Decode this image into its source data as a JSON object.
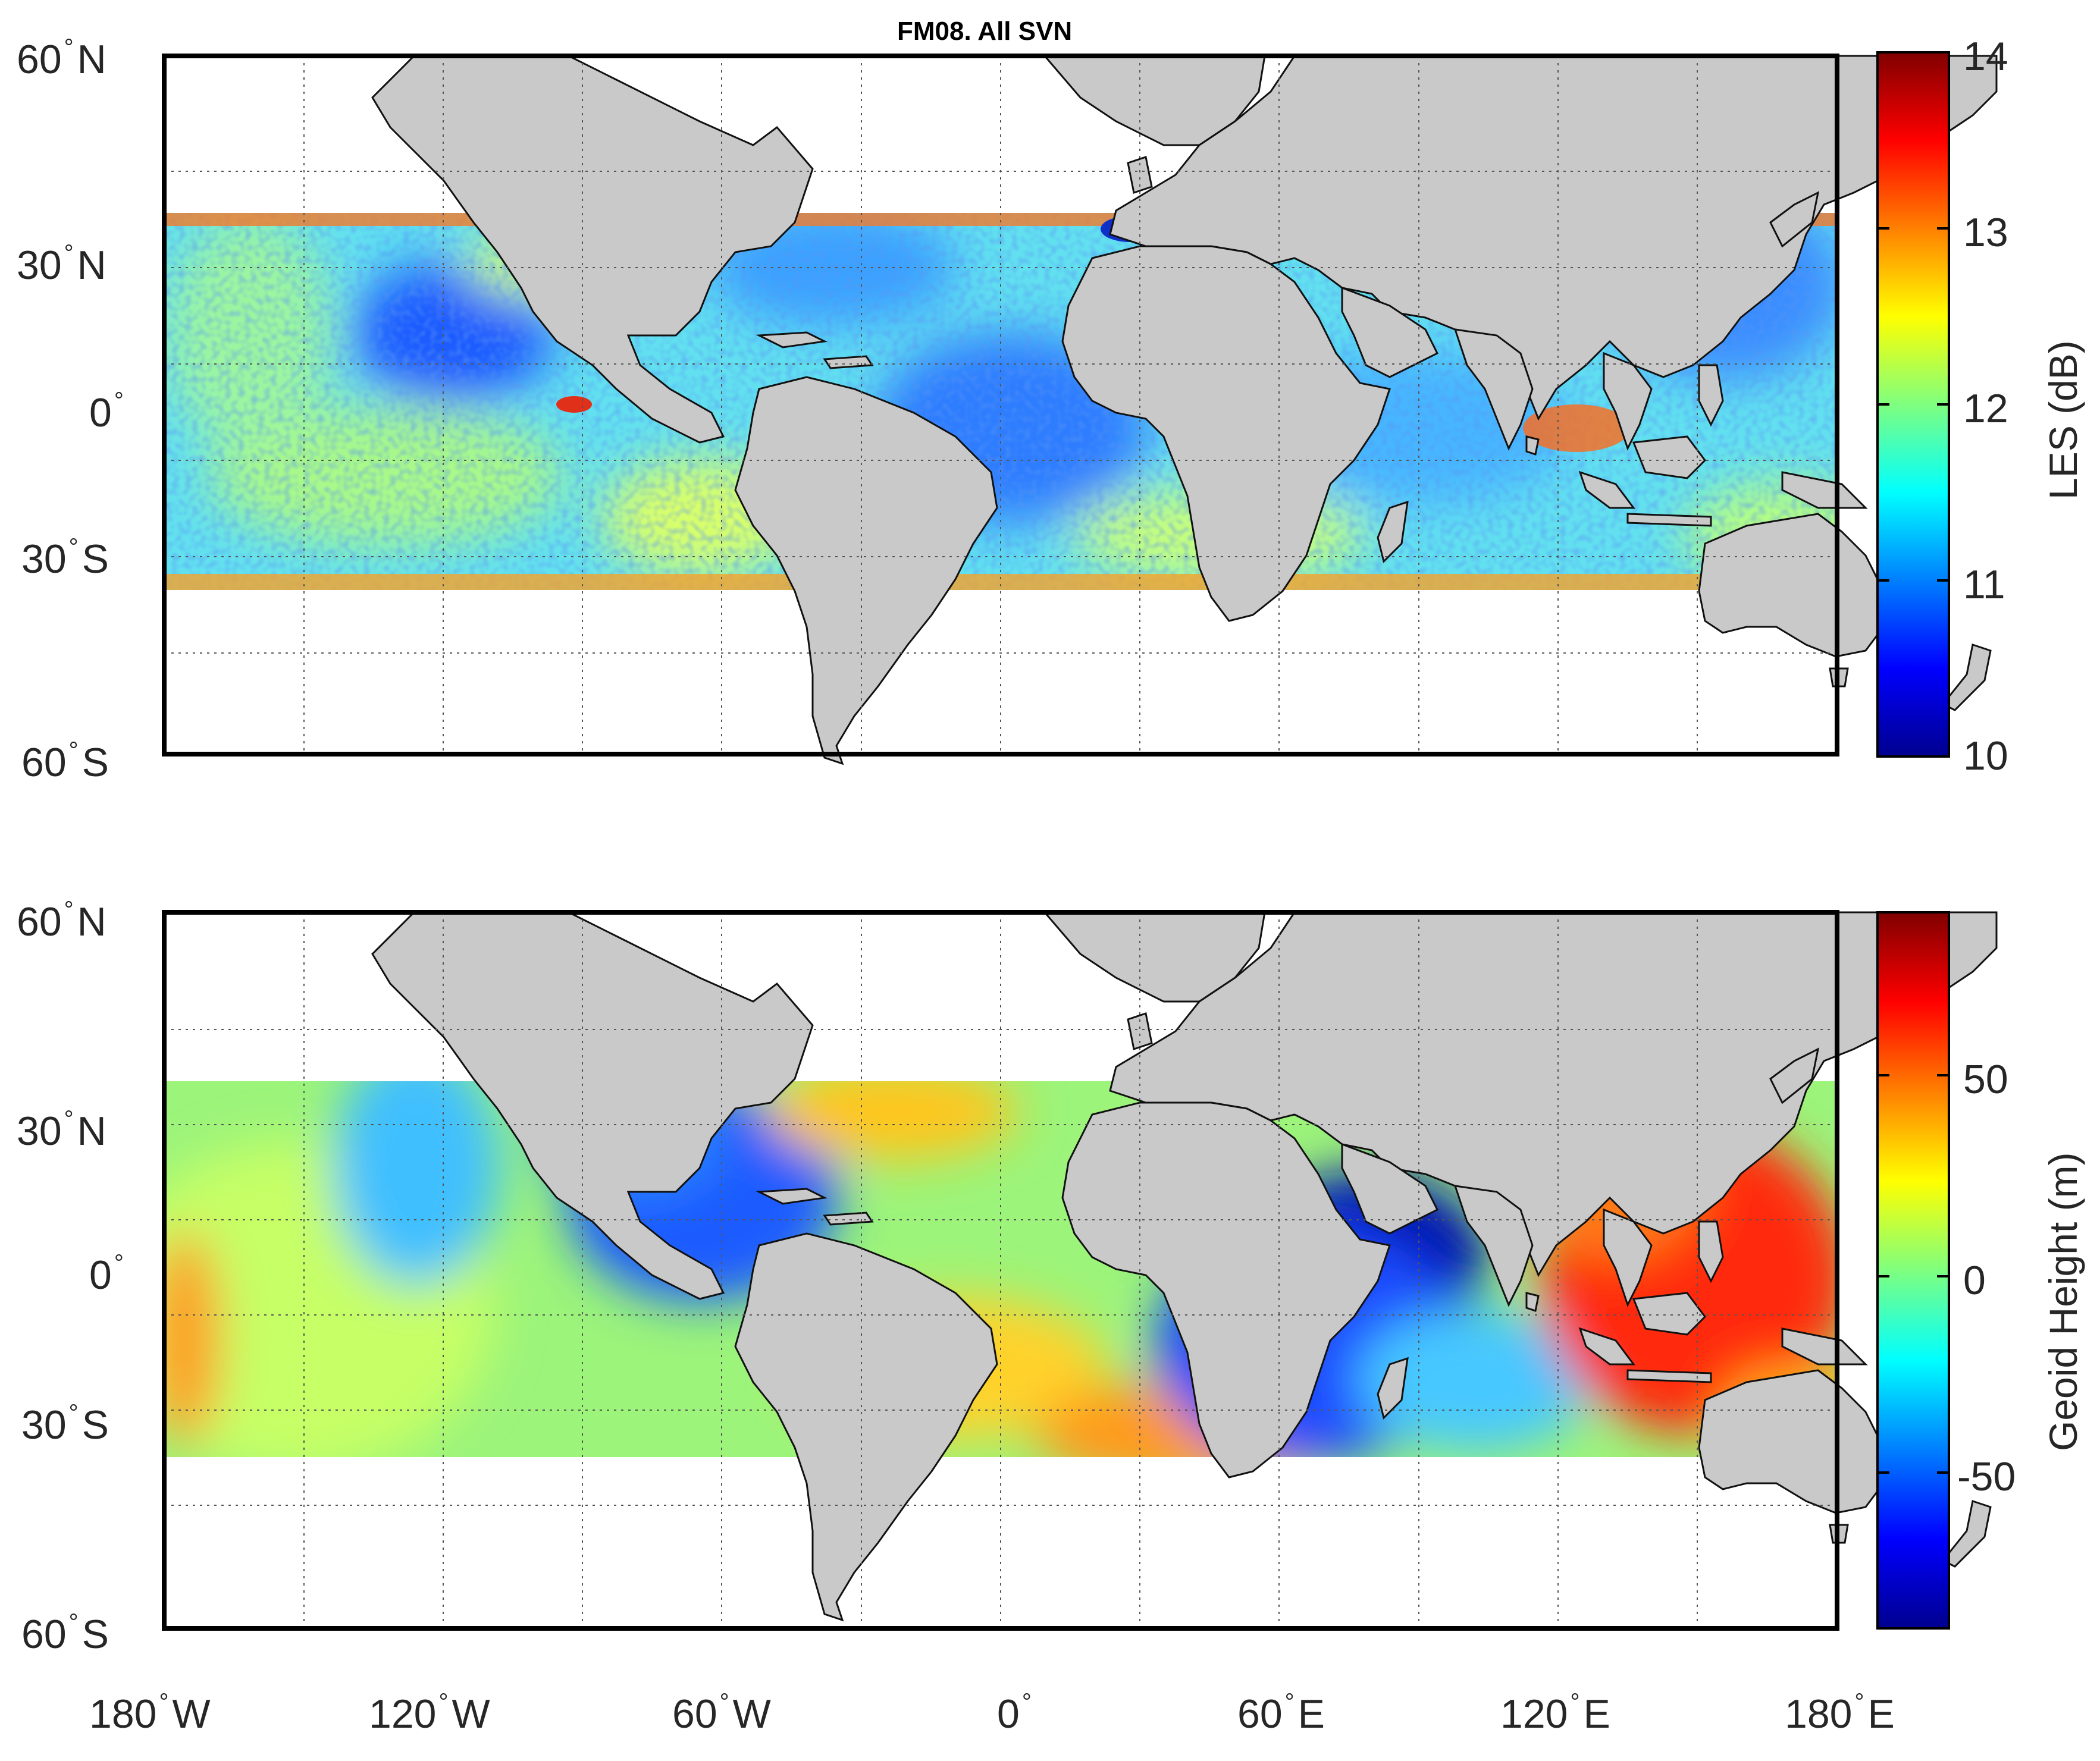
{
  "title": "FM08. All SVN",
  "map_top": {
    "colorbar_label": "LES (dB)",
    "colorbar_ticks": [
      "10",
      "11",
      "12",
      "13",
      "14"
    ],
    "range": [
      10,
      14
    ]
  },
  "map_bottom": {
    "colorbar_label": "Geoid Height (m)",
    "colorbar_ticks": [
      "-50",
      "0",
      "50"
    ],
    "range": [
      -85,
      90
    ]
  },
  "lat_labels": [
    {
      "deg": "60",
      "hem": "N"
    },
    {
      "deg": "30",
      "hem": "N"
    },
    {
      "deg": "0",
      "hem": ""
    },
    {
      "deg": "30",
      "hem": "S"
    },
    {
      "deg": "60",
      "hem": "S"
    }
  ],
  "lon_labels": [
    {
      "deg": "180",
      "hem": "W"
    },
    {
      "deg": "120",
      "hem": "W"
    },
    {
      "deg": "60",
      "hem": "W"
    },
    {
      "deg": "0",
      "hem": ""
    },
    {
      "deg": "60",
      "hem": "E"
    },
    {
      "deg": "120",
      "hem": "E"
    },
    {
      "deg": "180",
      "hem": "E"
    }
  ],
  "colors": {
    "land": "#c9c9c9",
    "frame": "#000000",
    "colormap": "jet"
  }
}
